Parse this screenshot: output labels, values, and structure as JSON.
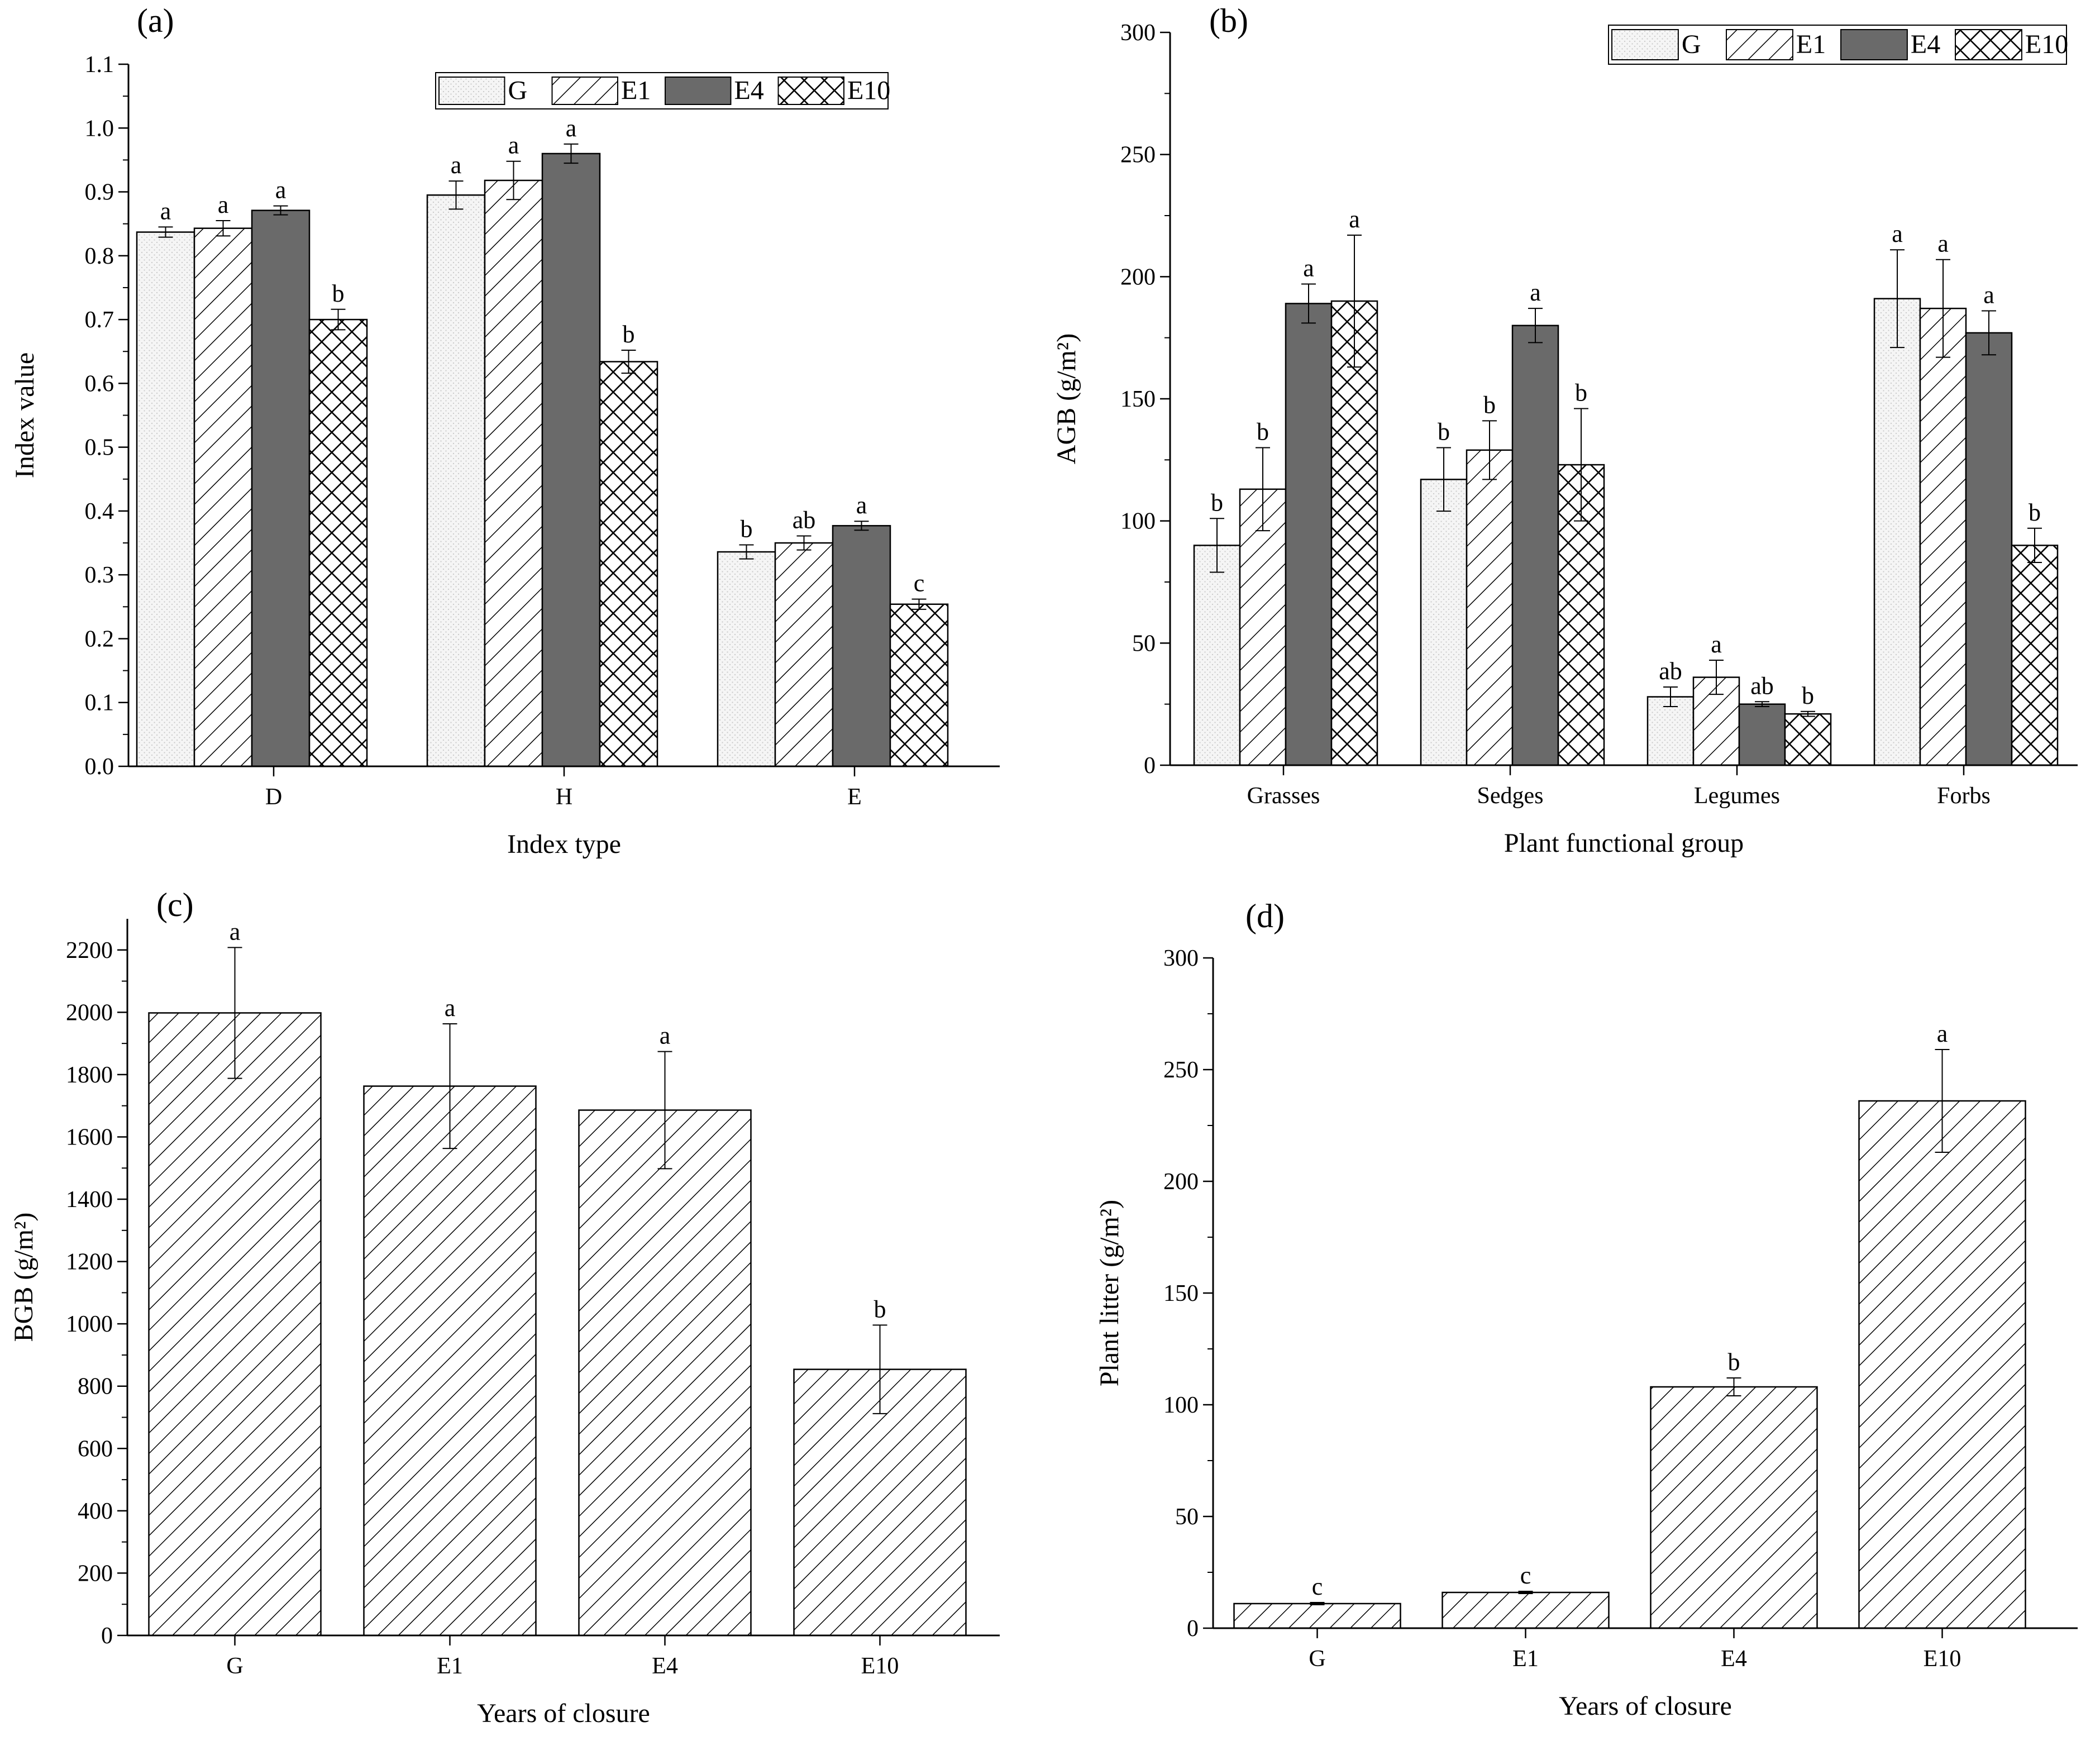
{
  "figure": {
    "patterns": {
      "G": "dots",
      "E1": "hatch",
      "E4": "solid",
      "E10": "crosshatch"
    },
    "colors": {
      "G": "#f4f4f4",
      "E1": "#ffffff",
      "E4": "#6a6a6a",
      "E10": "#ffffff",
      "stroke": "#000000"
    }
  },
  "chart_data": [
    {
      "type": "bar",
      "panel": "(a)",
      "xlabel": "Index type",
      "ylabel": "Index value",
      "categories": [
        "D",
        "H",
        "E"
      ],
      "ylim": [
        0.0,
        1.1
      ],
      "yticks": [
        0.0,
        0.1,
        0.2,
        0.3,
        0.4,
        0.5,
        0.6,
        0.7,
        0.8,
        0.9,
        1.0,
        1.1
      ],
      "tick_decimals": 1,
      "legend": "top-right",
      "series": [
        {
          "name": "G",
          "values": [
            0.837,
            0.895,
            0.336
          ],
          "errors": [
            0.008,
            0.022,
            0.011
          ],
          "labels": [
            "a",
            "a",
            "b"
          ]
        },
        {
          "name": "E1",
          "values": [
            0.843,
            0.918,
            0.35
          ],
          "errors": [
            0.012,
            0.03,
            0.011
          ],
          "labels": [
            "a",
            "a",
            "ab"
          ]
        },
        {
          "name": "E4",
          "values": [
            0.871,
            0.96,
            0.377
          ],
          "errors": [
            0.007,
            0.015,
            0.007
          ],
          "labels": [
            "a",
            "a",
            "a"
          ]
        },
        {
          "name": "E10",
          "values": [
            0.7,
            0.634,
            0.254
          ],
          "errors": [
            0.016,
            0.018,
            0.008
          ],
          "labels": [
            "b",
            "b",
            "c"
          ]
        }
      ]
    },
    {
      "type": "bar",
      "panel": "(b)",
      "xlabel": "Plant functional group",
      "ylabel": "AGB (g/m²)",
      "categories": [
        "Grasses",
        "Sedges",
        "Legumes",
        "Forbs"
      ],
      "ylim": [
        0,
        300
      ],
      "yticks": [
        0,
        50,
        100,
        150,
        200,
        250,
        300
      ],
      "tick_decimals": 0,
      "legend": "top-right",
      "series": [
        {
          "name": "G",
          "values": [
            90,
            117,
            28,
            191
          ],
          "errors": [
            11,
            13,
            4,
            20
          ],
          "labels": [
            "b",
            "b",
            "ab",
            "a"
          ]
        },
        {
          "name": "E1",
          "values": [
            113,
            129,
            36,
            187
          ],
          "errors": [
            17,
            12,
            7,
            20
          ],
          "labels": [
            "b",
            "b",
            "a",
            "a"
          ]
        },
        {
          "name": "E4",
          "values": [
            189,
            180,
            25,
            177
          ],
          "errors": [
            8,
            7,
            1,
            9
          ],
          "labels": [
            "a",
            "a",
            "ab",
            "a"
          ]
        },
        {
          "name": "E10",
          "values": [
            190,
            123,
            21,
            90
          ],
          "errors": [
            27,
            23,
            1,
            7
          ],
          "labels": [
            "a",
            "b",
            "b",
            "b"
          ]
        }
      ]
    },
    {
      "type": "bar",
      "panel": "(c)",
      "xlabel": "Years of closure",
      "ylabel": "BGB (g/m²)",
      "categories": [
        "G",
        "E1",
        "E4",
        "E10"
      ],
      "ylim": [
        0,
        2300
      ],
      "yticks": [
        0,
        200,
        400,
        600,
        800,
        1000,
        1200,
        1400,
        1600,
        1800,
        2000,
        2200
      ],
      "tick_decimals": 0,
      "series": [
        {
          "name": "BGB",
          "values": [
            1998,
            1763,
            1686,
            854
          ],
          "errors": [
            210,
            200,
            188,
            142
          ],
          "labels": [
            "a",
            "a",
            "a",
            "b"
          ]
        }
      ]
    },
    {
      "type": "bar",
      "panel": "(d)",
      "xlabel": "Years of closure",
      "ylabel": "Plant litter (g/m²)",
      "categories": [
        "G",
        "E1",
        "E4",
        "E10"
      ],
      "ylim": [
        0,
        300
      ],
      "yticks": [
        0,
        50,
        100,
        150,
        200,
        250,
        300
      ],
      "tick_decimals": 0,
      "series": [
        {
          "name": "Plant litter",
          "values": [
            11,
            16,
            108,
            236
          ],
          "errors": [
            0.5,
            0.5,
            4,
            23
          ],
          "labels": [
            "c",
            "c",
            "b",
            "a"
          ]
        }
      ]
    }
  ]
}
